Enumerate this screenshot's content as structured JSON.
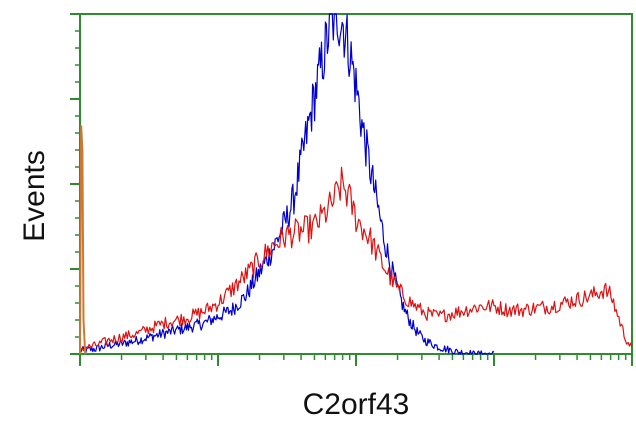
{
  "chart_data": {
    "type": "line",
    "chart_kind": "flow cytometry histogram (overlay)",
    "xlabel": "C2orf43",
    "ylabel": "Events",
    "x_scale": "log",
    "xlim": [
      1,
      10000
    ],
    "ylim": [
      0,
      200
    ],
    "grid": false,
    "legend": "none",
    "frame_color": "#2e8b2e",
    "series": [
      {
        "color": "#0000cc",
        "x": [
          1.0,
          1.3,
          1.6,
          2.0,
          2.6,
          3.2,
          4.0,
          5.0,
          6.3,
          7.9,
          10.0,
          12.6,
          15.8,
          20.0,
          25.1,
          31.6,
          35.5,
          39.8,
          44.7,
          50.1,
          56.2,
          63.1,
          70.8,
          79.4,
          89.1,
          100,
          112,
          126,
          141,
          158,
          178,
          200,
          224,
          251,
          282,
          316,
          355,
          398,
          447,
          501,
          562,
          631,
          708,
          794,
          891,
          1000
        ],
        "y": [
          2,
          3,
          5,
          6,
          8,
          10,
          12,
          14,
          16,
          18,
          22,
          26,
          34,
          48,
          62,
          80,
          92,
          112,
          132,
          152,
          170,
          188,
          200,
          196,
          180,
          158,
          132,
          110,
          90,
          70,
          52,
          38,
          26,
          18,
          12,
          8,
          6,
          4,
          3,
          2,
          1,
          1,
          0,
          0,
          0,
          0
        ]
      },
      {
        "color": "#dd1111",
        "x": [
          1.0,
          1.3,
          1.6,
          2.0,
          2.6,
          3.2,
          4.0,
          5.0,
          6.3,
          7.9,
          10.0,
          12.6,
          15.8,
          20.0,
          25.1,
          31.6,
          39.8,
          50.1,
          63.1,
          70.8,
          79.4,
          89.1,
          100,
          126,
          158,
          200,
          251,
          316,
          398,
          501,
          631,
          794,
          1000,
          1259,
          1585,
          1995,
          2512,
          3162,
          3981,
          5012,
          5623,
          6310,
          7079,
          7943,
          8913,
          10000
        ],
        "y": [
          3,
          5,
          8,
          10,
          12,
          15,
          18,
          20,
          22,
          25,
          30,
          38,
          46,
          55,
          64,
          70,
          72,
          75,
          85,
          92,
          100,
          92,
          80,
          68,
          52,
          38,
          30,
          24,
          22,
          24,
          26,
          28,
          28,
          26,
          26,
          27,
          28,
          30,
          32,
          34,
          36,
          38,
          34,
          22,
          10,
          3
        ]
      },
      {
        "color": "#cc7a33",
        "x": [
          1.0,
          1.02,
          1.04,
          1.06,
          1.09
        ],
        "y": [
          0,
          134,
          120,
          20,
          0
        ]
      }
    ]
  }
}
